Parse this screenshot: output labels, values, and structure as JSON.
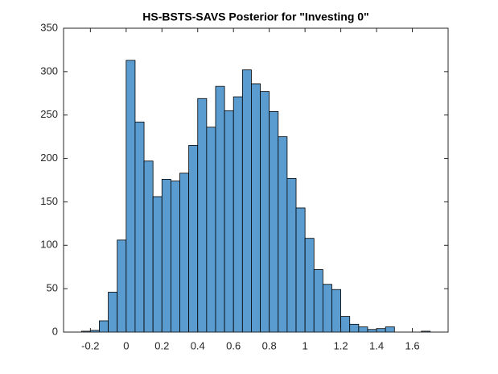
{
  "chart_data": {
    "type": "histogram",
    "title": "HS-BSTS-SAVS Posterior for \"Investing 0\"",
    "bins": [
      -0.25,
      -0.2,
      -0.15,
      -0.1,
      -0.05,
      0,
      0.05,
      0.1,
      0.15,
      0.2,
      0.25,
      0.3,
      0.35,
      0.4,
      0.45,
      0.5,
      0.55,
      0.6,
      0.65,
      0.7,
      0.75,
      0.8,
      0.85,
      0.9,
      0.95,
      1,
      1.05,
      1.1,
      1.15,
      1.2,
      1.25,
      1.3,
      1.35,
      1.4,
      1.45,
      1.5,
      1.55,
      1.6,
      1.65,
      1.7
    ],
    "counts": [
      1,
      2,
      13,
      46,
      106,
      313,
      242,
      197,
      156,
      176,
      174,
      183,
      215,
      269,
      236,
      283,
      255,
      271,
      302,
      286,
      277,
      254,
      225,
      177,
      143,
      108,
      72,
      55,
      49,
      18,
      9,
      6,
      3,
      4,
      6,
      0,
      0,
      0,
      1
    ],
    "color": "#5a9cd0",
    "xlim": [
      -0.35,
      1.8
    ],
    "xticks": [
      -0.2,
      0,
      0.2,
      0.4,
      0.6,
      0.8,
      1,
      1.2,
      1.4,
      1.6
    ],
    "ylim": [
      0,
      350
    ],
    "yticks": [
      0,
      50,
      100,
      150,
      200,
      250,
      300,
      350
    ]
  }
}
